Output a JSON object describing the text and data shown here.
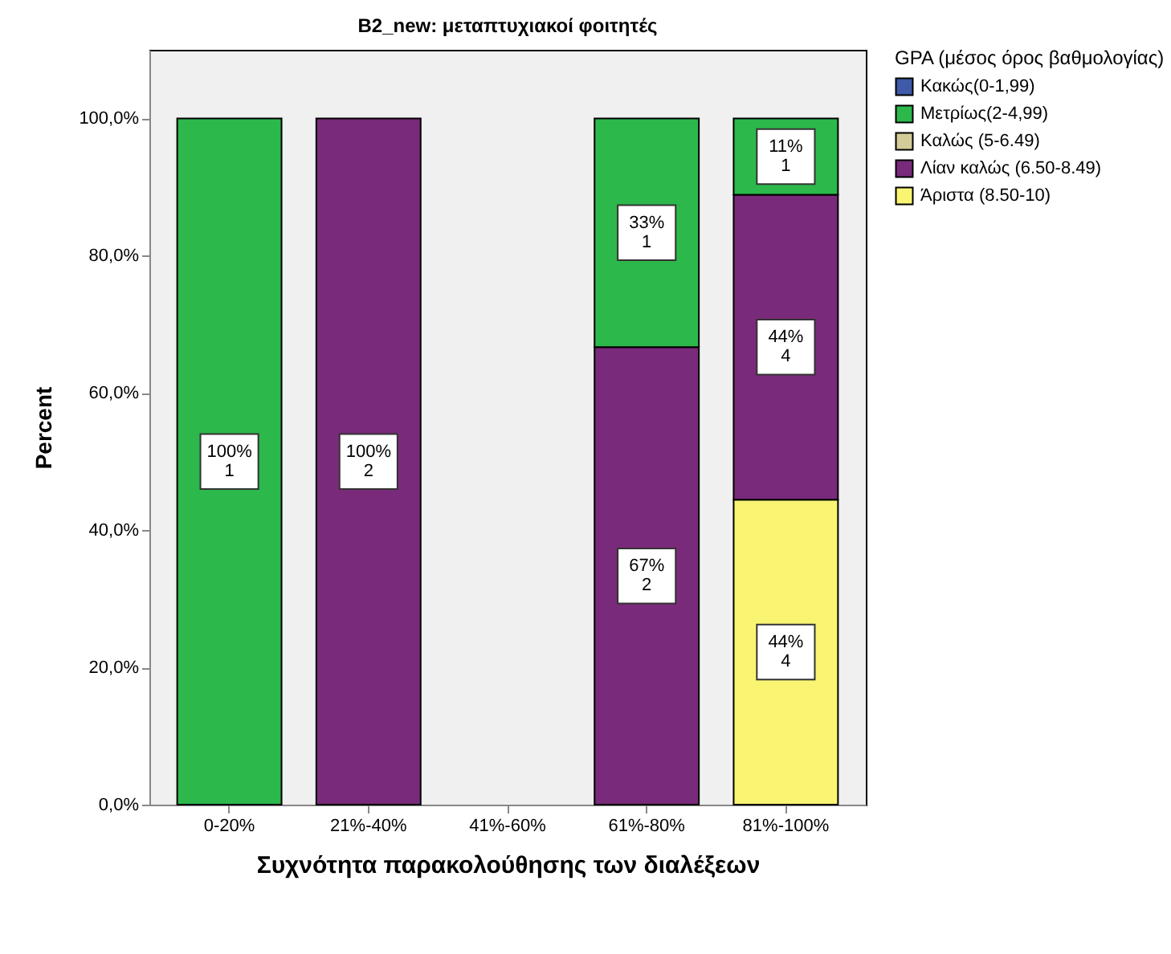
{
  "chart_data": {
    "type": "bar",
    "stacked": true,
    "title": "B2_new: μεταπτυχιακοί φοιτητές",
    "xlabel": "Συχνότητα παρακολούθησης των διαλέξεων",
    "ylabel": "Percent",
    "legend_title": "GPA (μέσος όρος βαθμολογίας)",
    "legend": "top right",
    "grid": false,
    "categories": [
      "0-20%",
      "21%-40%",
      "41%-60%",
      "61%-80%",
      "81%-100%"
    ],
    "ylim": [
      0,
      110
    ],
    "yticks": [
      {
        "value": 0,
        "label": "0,0%"
      },
      {
        "value": 20,
        "label": "20,0%"
      },
      {
        "value": 40,
        "label": "40,0%"
      },
      {
        "value": 60,
        "label": "60,0%"
      },
      {
        "value": 80,
        "label": "80,0%"
      },
      {
        "value": 100,
        "label": "100,0%"
      }
    ],
    "series": [
      {
        "name": "Άριστα (8.50-10)",
        "color": "#f9f573",
        "values": [
          null,
          null,
          null,
          null,
          44.44
        ],
        "value_labels": [
          null,
          null,
          null,
          null,
          "44%\n4"
        ]
      },
      {
        "name": "Λίαν καλώς (6.50-8.49)",
        "color": "#7a2a7a",
        "values": [
          null,
          100,
          null,
          66.67,
          44.44
        ],
        "value_labels": [
          null,
          "100%\n2",
          null,
          "67%\n2",
          "44%\n4"
        ]
      },
      {
        "name": "Καλώς (5-6.49)",
        "color": "#d4cc98",
        "values": [
          null,
          null,
          null,
          null,
          null
        ]
      },
      {
        "name": "Μετρίως(2-4,99)",
        "color": "#2db84b",
        "values": [
          100,
          null,
          null,
          33.33,
          11.11
        ],
        "value_labels": [
          "100%\n1",
          null,
          null,
          "33%\n1",
          "11%\n1"
        ]
      },
      {
        "name": "Κακώς(0-1,99)",
        "color": "#3e5aa8",
        "values": [
          null,
          null,
          null,
          null,
          null
        ]
      }
    ]
  }
}
